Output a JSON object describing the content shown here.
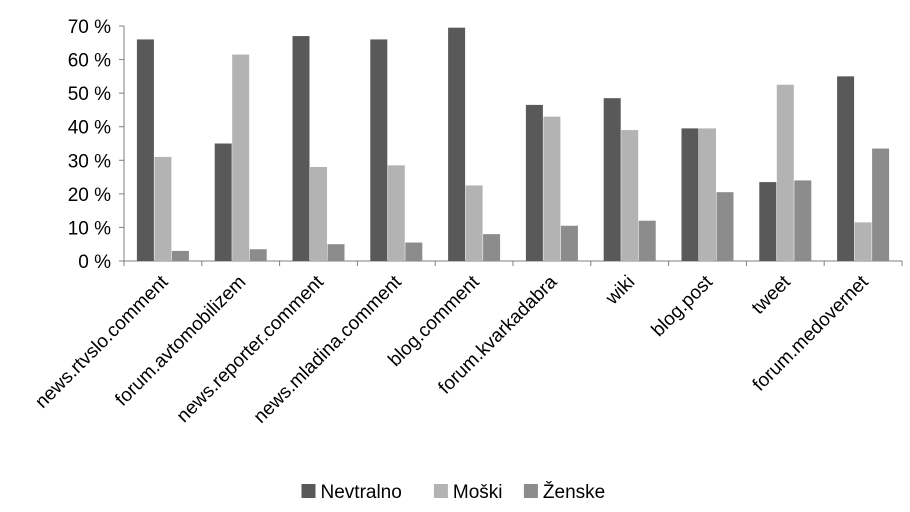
{
  "chart_data": {
    "type": "bar",
    "title": "",
    "xlabel": "",
    "ylabel": "",
    "ylim": [
      0,
      70
    ],
    "y_tick_step": 10,
    "y_tick_suffix": " %",
    "grid": false,
    "legend_position": "bottom",
    "categories": [
      "news.rtvslo.comment",
      "forum.avtomobilizem",
      "news.reporter.comment",
      "news.mladina.comment",
      "blog.comment",
      "forum.kvarkadabra",
      "wiki",
      "blog.post",
      "tweet",
      "forum.medovernet"
    ],
    "series": [
      {
        "name": "Nevtralno",
        "color": "#595959",
        "values": [
          66,
          35,
          67,
          66,
          69.5,
          46.5,
          48.5,
          39.5,
          23.5,
          55
        ]
      },
      {
        "name": "Moški",
        "color": "#b3b3b3",
        "values": [
          31,
          61.5,
          28,
          28.5,
          22.5,
          43,
          39,
          39.5,
          52.5,
          11.5
        ]
      },
      {
        "name": "Ženske",
        "color": "#8c8c8c",
        "values": [
          3,
          3.5,
          5,
          5.5,
          8,
          10.5,
          12,
          20.5,
          24,
          33.5
        ]
      }
    ]
  }
}
